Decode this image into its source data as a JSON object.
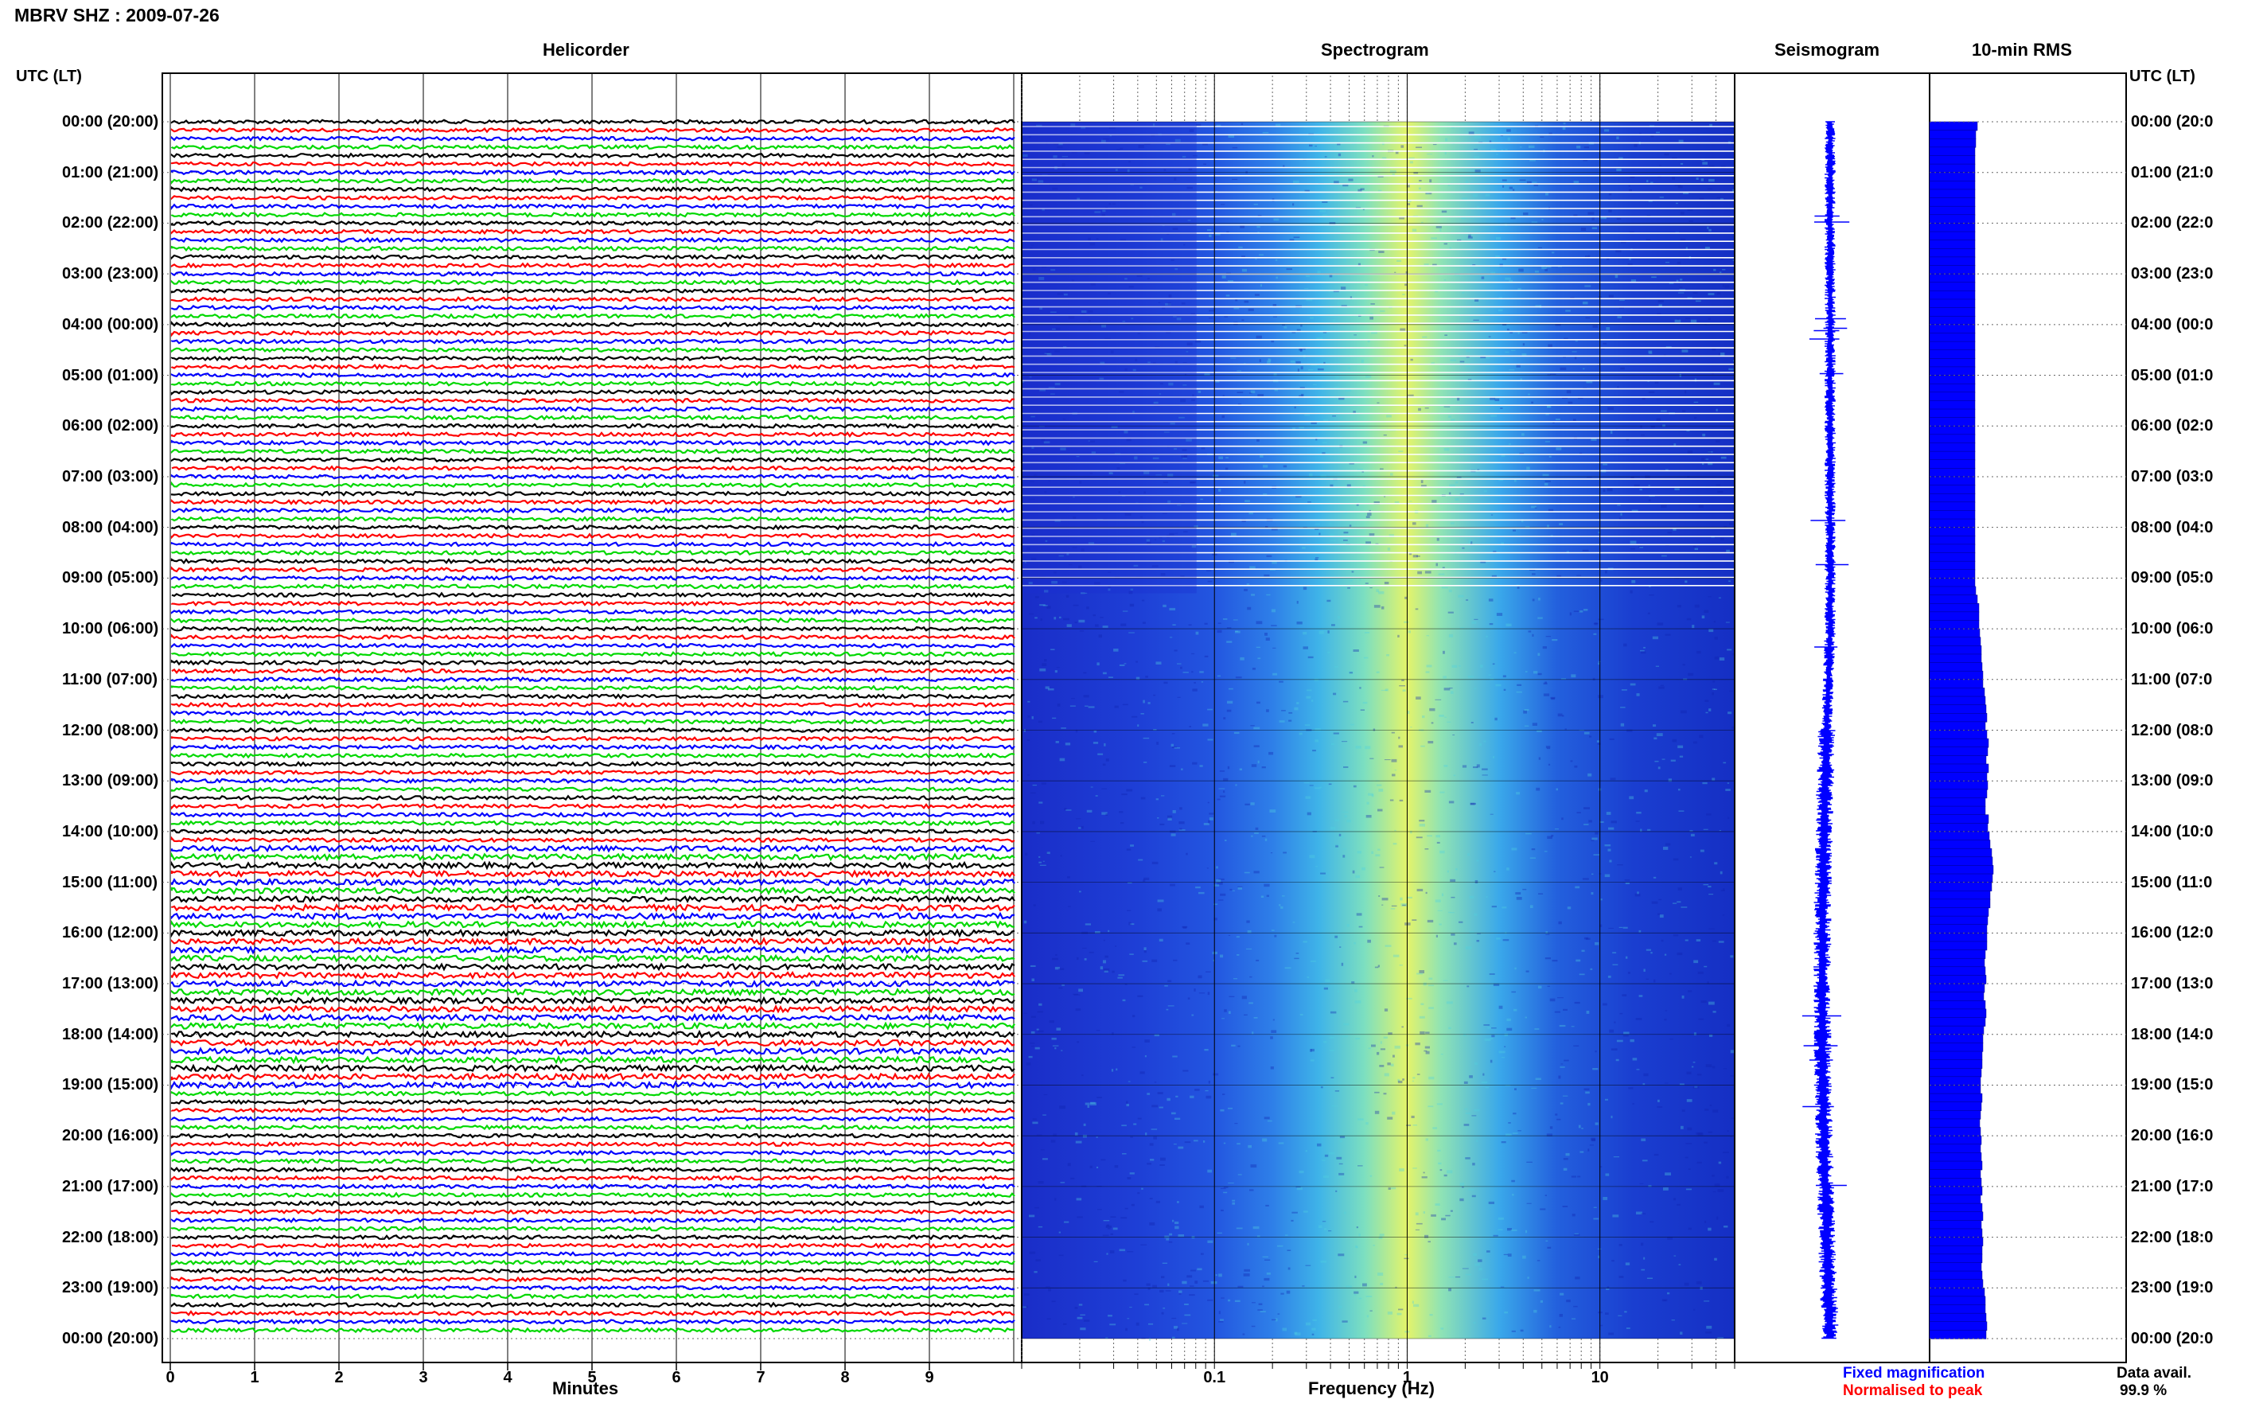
{
  "header": {
    "title": "MBRV SHZ : 2009-07-26",
    "utc_label_left": "UTC (LT)",
    "utc_label_right": "UTC (LT)"
  },
  "panels": {
    "helicorder": "Helicorder",
    "spectrogram": "Spectrogram",
    "seismogram": "Seismogram",
    "rms": "10-min RMS"
  },
  "time_labels": [
    "00:00 (20:00)",
    "01:00 (21:00)",
    "02:00 (22:00)",
    "03:00 (23:00)",
    "04:00 (00:00)",
    "05:00 (01:00)",
    "06:00 (02:00)",
    "07:00 (03:00)",
    "08:00 (04:00)",
    "09:00 (05:00)",
    "10:00 (06:00)",
    "11:00 (07:00)",
    "12:00 (08:00)",
    "13:00 (09:00)",
    "14:00 (10:00)",
    "15:00 (11:00)",
    "16:00 (12:00)",
    "17:00 (13:00)",
    "18:00 (14:00)",
    "19:00 (15:00)",
    "20:00 (16:00)",
    "21:00 (17:00)",
    "22:00 (18:00)",
    "23:00 (19:00)",
    "00:00 (20:00)"
  ],
  "time_labels_right": [
    "00:00 (20:0",
    "01:00 (21:0",
    "02:00 (22:0",
    "03:00 (23:0",
    "04:00 (00:0",
    "05:00 (01:0",
    "06:00 (02:0",
    "07:00 (03:0",
    "08:00 (04:0",
    "09:00 (05:0",
    "10:00 (06:0",
    "11:00 (07:0",
    "12:00 (08:0",
    "13:00 (09:0",
    "14:00 (10:0",
    "15:00 (11:0",
    "16:00 (12:0",
    "17:00 (13:0",
    "18:00 (14:0",
    "19:00 (15:0",
    "20:00 (16:0",
    "21:00 (17:0",
    "22:00 (18:0",
    "23:00 (19:0",
    "00:00 (20:0"
  ],
  "footer": {
    "minutes_label": "Minutes",
    "frequency_label": "Frequency (Hz)",
    "legend_fixed": "Fixed magnification",
    "legend_normalised": "Normalised to peak",
    "data_avail_label": "Data avail.",
    "data_avail_value": "99.9 %"
  },
  "colors": {
    "trace_cycle": [
      "#000000",
      "#ff0000",
      "#0000ff",
      "#00d800"
    ],
    "fixed": "#0000ff",
    "normalised": "#ff0000",
    "spectro_dark": "#1530d0",
    "spectro_peak": "#ffff40"
  },
  "chart_data": {
    "type": "heatmap",
    "helicorder": {
      "x_axis": {
        "label": "Minutes",
        "ticks": [
          0,
          1,
          2,
          3,
          4,
          5,
          6,
          7,
          8,
          9
        ],
        "range": [
          0,
          10
        ]
      },
      "lines_per_hour": 6,
      "line_duration_min": 10,
      "color_cycle": [
        "black",
        "red",
        "blue",
        "green"
      ]
    },
    "spectrogram": {
      "x_axis": {
        "label": "Frequency (Hz)",
        "scale": "log",
        "ticks": [
          0.1,
          1,
          10
        ],
        "range": [
          0.01,
          50
        ]
      },
      "peak_frequency_hz": 1,
      "gap_hours": [
        0,
        9.3
      ]
    },
    "seismogram": {
      "hours": [
        0,
        24
      ]
    },
    "rms_10min": {
      "interval_min": 10,
      "values_relative": [
        0.6,
        0.58,
        0.58,
        0.57,
        0.57,
        0.57,
        0.57,
        0.57,
        0.57,
        0.57,
        0.57,
        0.57,
        0.57,
        0.57,
        0.57,
        0.57,
        0.57,
        0.57,
        0.57,
        0.57,
        0.57,
        0.57,
        0.57,
        0.57,
        0.57,
        0.57,
        0.57,
        0.57,
        0.57,
        0.57,
        0.57,
        0.57,
        0.57,
        0.57,
        0.57,
        0.57,
        0.57,
        0.57,
        0.57,
        0.57,
        0.57,
        0.57,
        0.57,
        0.57,
        0.57,
        0.57,
        0.57,
        0.57,
        0.57,
        0.57,
        0.57,
        0.57,
        0.57,
        0.57,
        0.57,
        0.58,
        0.6,
        0.62,
        0.62,
        0.62,
        0.63,
        0.64,
        0.65,
        0.65,
        0.66,
        0.67,
        0.67,
        0.69,
        0.7,
        0.71,
        0.72,
        0.7,
        0.72,
        0.74,
        0.73,
        0.71,
        0.74,
        0.72,
        0.73,
        0.72,
        0.7,
        0.7,
        0.74,
        0.73,
        0.75,
        0.76,
        0.78,
        0.79,
        0.8,
        0.79,
        0.78,
        0.76,
        0.76,
        0.74,
        0.73,
        0.72,
        0.72,
        0.72,
        0.7,
        0.69,
        0.7,
        0.71,
        0.69,
        0.68,
        0.7,
        0.71,
        0.7,
        0.68,
        0.67,
        0.67,
        0.66,
        0.66,
        0.65,
        0.64,
        0.64,
        0.66,
        0.65,
        0.64,
        0.63,
        0.64,
        0.65,
        0.64,
        0.65,
        0.66,
        0.64,
        0.65,
        0.66,
        0.64,
        0.66,
        0.67,
        0.65,
        0.66,
        0.67,
        0.66,
        0.66,
        0.65,
        0.66,
        0.67,
        0.69,
        0.7,
        0.7,
        0.71,
        0.72,
        0.71
      ]
    }
  }
}
